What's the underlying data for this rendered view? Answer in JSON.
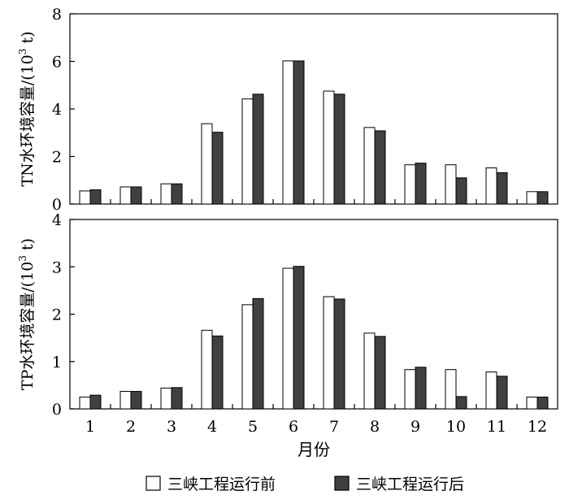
{
  "chart_data": [
    {
      "type": "bar",
      "ylabel": "TN水环境容量/(10",
      "ylabel_sup": "3",
      "ylabel_tail": " t)",
      "ylim": [
        0,
        8
      ],
      "yticks": [
        "0",
        "2",
        "4",
        "6",
        "8"
      ],
      "categories": [
        "1",
        "2",
        "3",
        "4",
        "5",
        "6",
        "7",
        "8",
        "9",
        "10",
        "11",
        "12"
      ],
      "series": [
        {
          "name": "三峡工程运行前",
          "color": "#ffffff",
          "values": [
            0.55,
            0.72,
            0.85,
            3.38,
            4.42,
            6.02,
            4.75,
            3.22,
            1.65,
            1.65,
            1.52,
            0.52
          ]
        },
        {
          "name": "三峡工程运行后",
          "color": "#404040",
          "values": [
            0.6,
            0.72,
            0.85,
            3.02,
            4.62,
            6.02,
            4.62,
            3.08,
            1.72,
            1.1,
            1.32,
            0.52
          ]
        }
      ]
    },
    {
      "type": "bar",
      "ylabel": "TP水环境容量/(10",
      "ylabel_sup": "3",
      "ylabel_tail": " t)",
      "ylim": [
        0,
        4
      ],
      "yticks": [
        "0",
        "1",
        "2",
        "3",
        "4"
      ],
      "categories": [
        "1",
        "2",
        "3",
        "4",
        "5",
        "6",
        "7",
        "8",
        "9",
        "10",
        "11",
        "12"
      ],
      "series": [
        {
          "name": "三峡工程运行前",
          "color": "#ffffff",
          "values": [
            0.25,
            0.37,
            0.44,
            1.66,
            2.2,
            2.97,
            2.37,
            1.6,
            0.83,
            0.83,
            0.78,
            0.25
          ]
        },
        {
          "name": "三峡工程运行后",
          "color": "#404040",
          "values": [
            0.29,
            0.37,
            0.45,
            1.54,
            2.33,
            3.01,
            2.32,
            1.53,
            0.88,
            0.26,
            0.69,
            0.25
          ]
        }
      ]
    }
  ],
  "xlabel": "月份",
  "legend": {
    "position": "bottom",
    "items": [
      {
        "label": "三峡工程运行前",
        "color": "#ffffff"
      },
      {
        "label": "三峡工程运行后",
        "color": "#404040"
      }
    ]
  }
}
